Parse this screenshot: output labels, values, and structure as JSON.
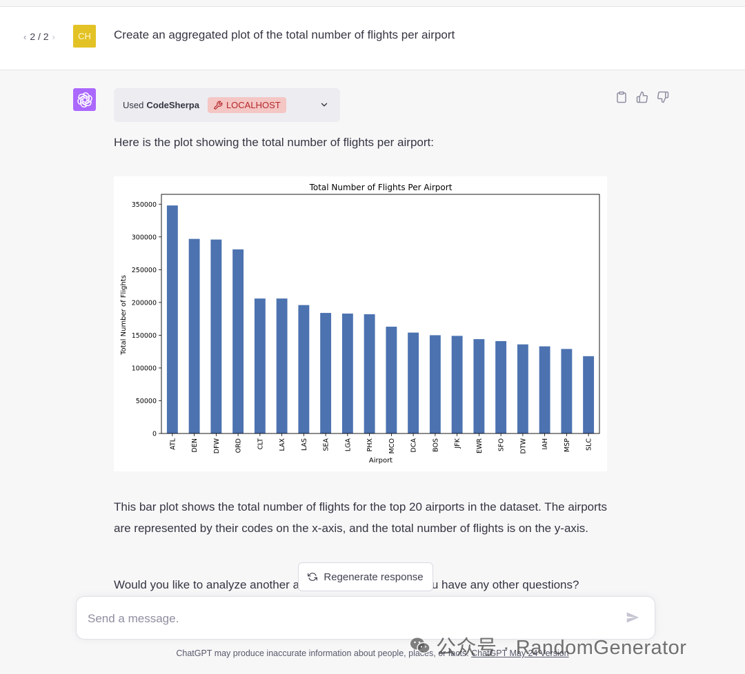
{
  "user_message": {
    "pager": {
      "prev": "‹",
      "label": "2 / 2",
      "next": "›"
    },
    "avatar_initials": "CH",
    "text": "Create an aggregated plot of the total number of flights per airport"
  },
  "plugin": {
    "used_label": "Used",
    "name": "CodeSherpa",
    "badge": "LOCALHOST"
  },
  "assistant": {
    "intro": "Here is the plot showing the total number of flights per airport:",
    "explanation": "This bar plot shows the total number of flights for the top 20 airports in the dataset. The airports are represented by their codes on the x-axis, and the total number of flights is on the y-axis.",
    "followup": "Would you like to analyze another aspect of the data or do you have any other questions?"
  },
  "regenerate_label": "Regenerate response",
  "composer": {
    "placeholder": "Send a message."
  },
  "footer": {
    "text": "ChatGPT may produce inaccurate information about people, places, or facts. ",
    "link": "ChatGPT May 24 Version"
  },
  "watermark": "公众号 · RandomGenerator",
  "colors": {
    "bar": "#4c72b0",
    "assistant_avatar": "#ab68ff",
    "user_avatar": "#e3c226",
    "badge_bg": "#f4c6c4",
    "badge_text": "#b4262a"
  },
  "chart_data": {
    "type": "bar",
    "title": "Total Number of Flights Per Airport",
    "xlabel": "Airport",
    "ylabel": "Total Number of Flights",
    "categories": [
      "ATL",
      "DEN",
      "DFW",
      "ORD",
      "CLT",
      "LAX",
      "LAS",
      "SEA",
      "LGA",
      "PHX",
      "MCO",
      "DCA",
      "BOS",
      "JFK",
      "EWR",
      "SFO",
      "DTW",
      "IAH",
      "MSP",
      "SLC"
    ],
    "values": [
      348000,
      297000,
      296000,
      281000,
      206000,
      206000,
      196000,
      184000,
      183000,
      182000,
      163000,
      154000,
      150000,
      149000,
      144000,
      141000,
      136000,
      133000,
      129000,
      118000
    ],
    "yticks": [
      0,
      50000,
      100000,
      150000,
      200000,
      250000,
      300000,
      350000
    ],
    "ylim": [
      0,
      365000
    ],
    "grid": false,
    "legend": "none"
  }
}
